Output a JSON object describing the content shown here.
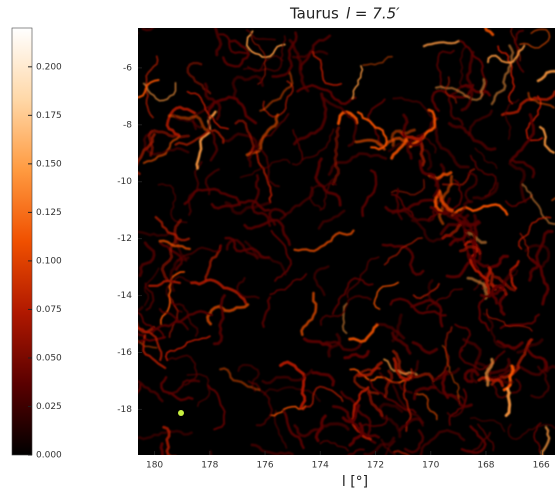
{
  "chart_data": {
    "type": "heatmap",
    "title": "Taurus",
    "title_math": "l = 7.5′",
    "xlabel": "l [°]",
    "xlim": [
      180.6,
      165.5
    ],
    "xticks": [
      180,
      178,
      176,
      174,
      172,
      170,
      168,
      166
    ],
    "ylim": [
      -19.6,
      -4.6
    ],
    "yticks": [
      -6,
      -8,
      -10,
      -12,
      -14,
      -16,
      -18
    ],
    "clim": [
      0,
      0.22
    ],
    "cticks": [
      {
        "value": 0,
        "label": "0.000"
      },
      {
        "value": 0.025,
        "label": "0.025"
      },
      {
        "value": 0.05,
        "label": "0.050"
      },
      {
        "value": 0.075,
        "label": "0.075"
      },
      {
        "value": 0.1,
        "label": "0.100"
      },
      {
        "value": 0.125,
        "label": "0.125"
      },
      {
        "value": 0.15,
        "label": "0.150"
      },
      {
        "value": 0.175,
        "label": "0.175"
      },
      {
        "value": 0.2,
        "label": "0.200"
      }
    ],
    "colormap": [
      "#000000",
      "#5a0000",
      "#b01800",
      "#f05000",
      "#ff9a40",
      "#ffd8a8",
      "#ffffff"
    ]
  }
}
